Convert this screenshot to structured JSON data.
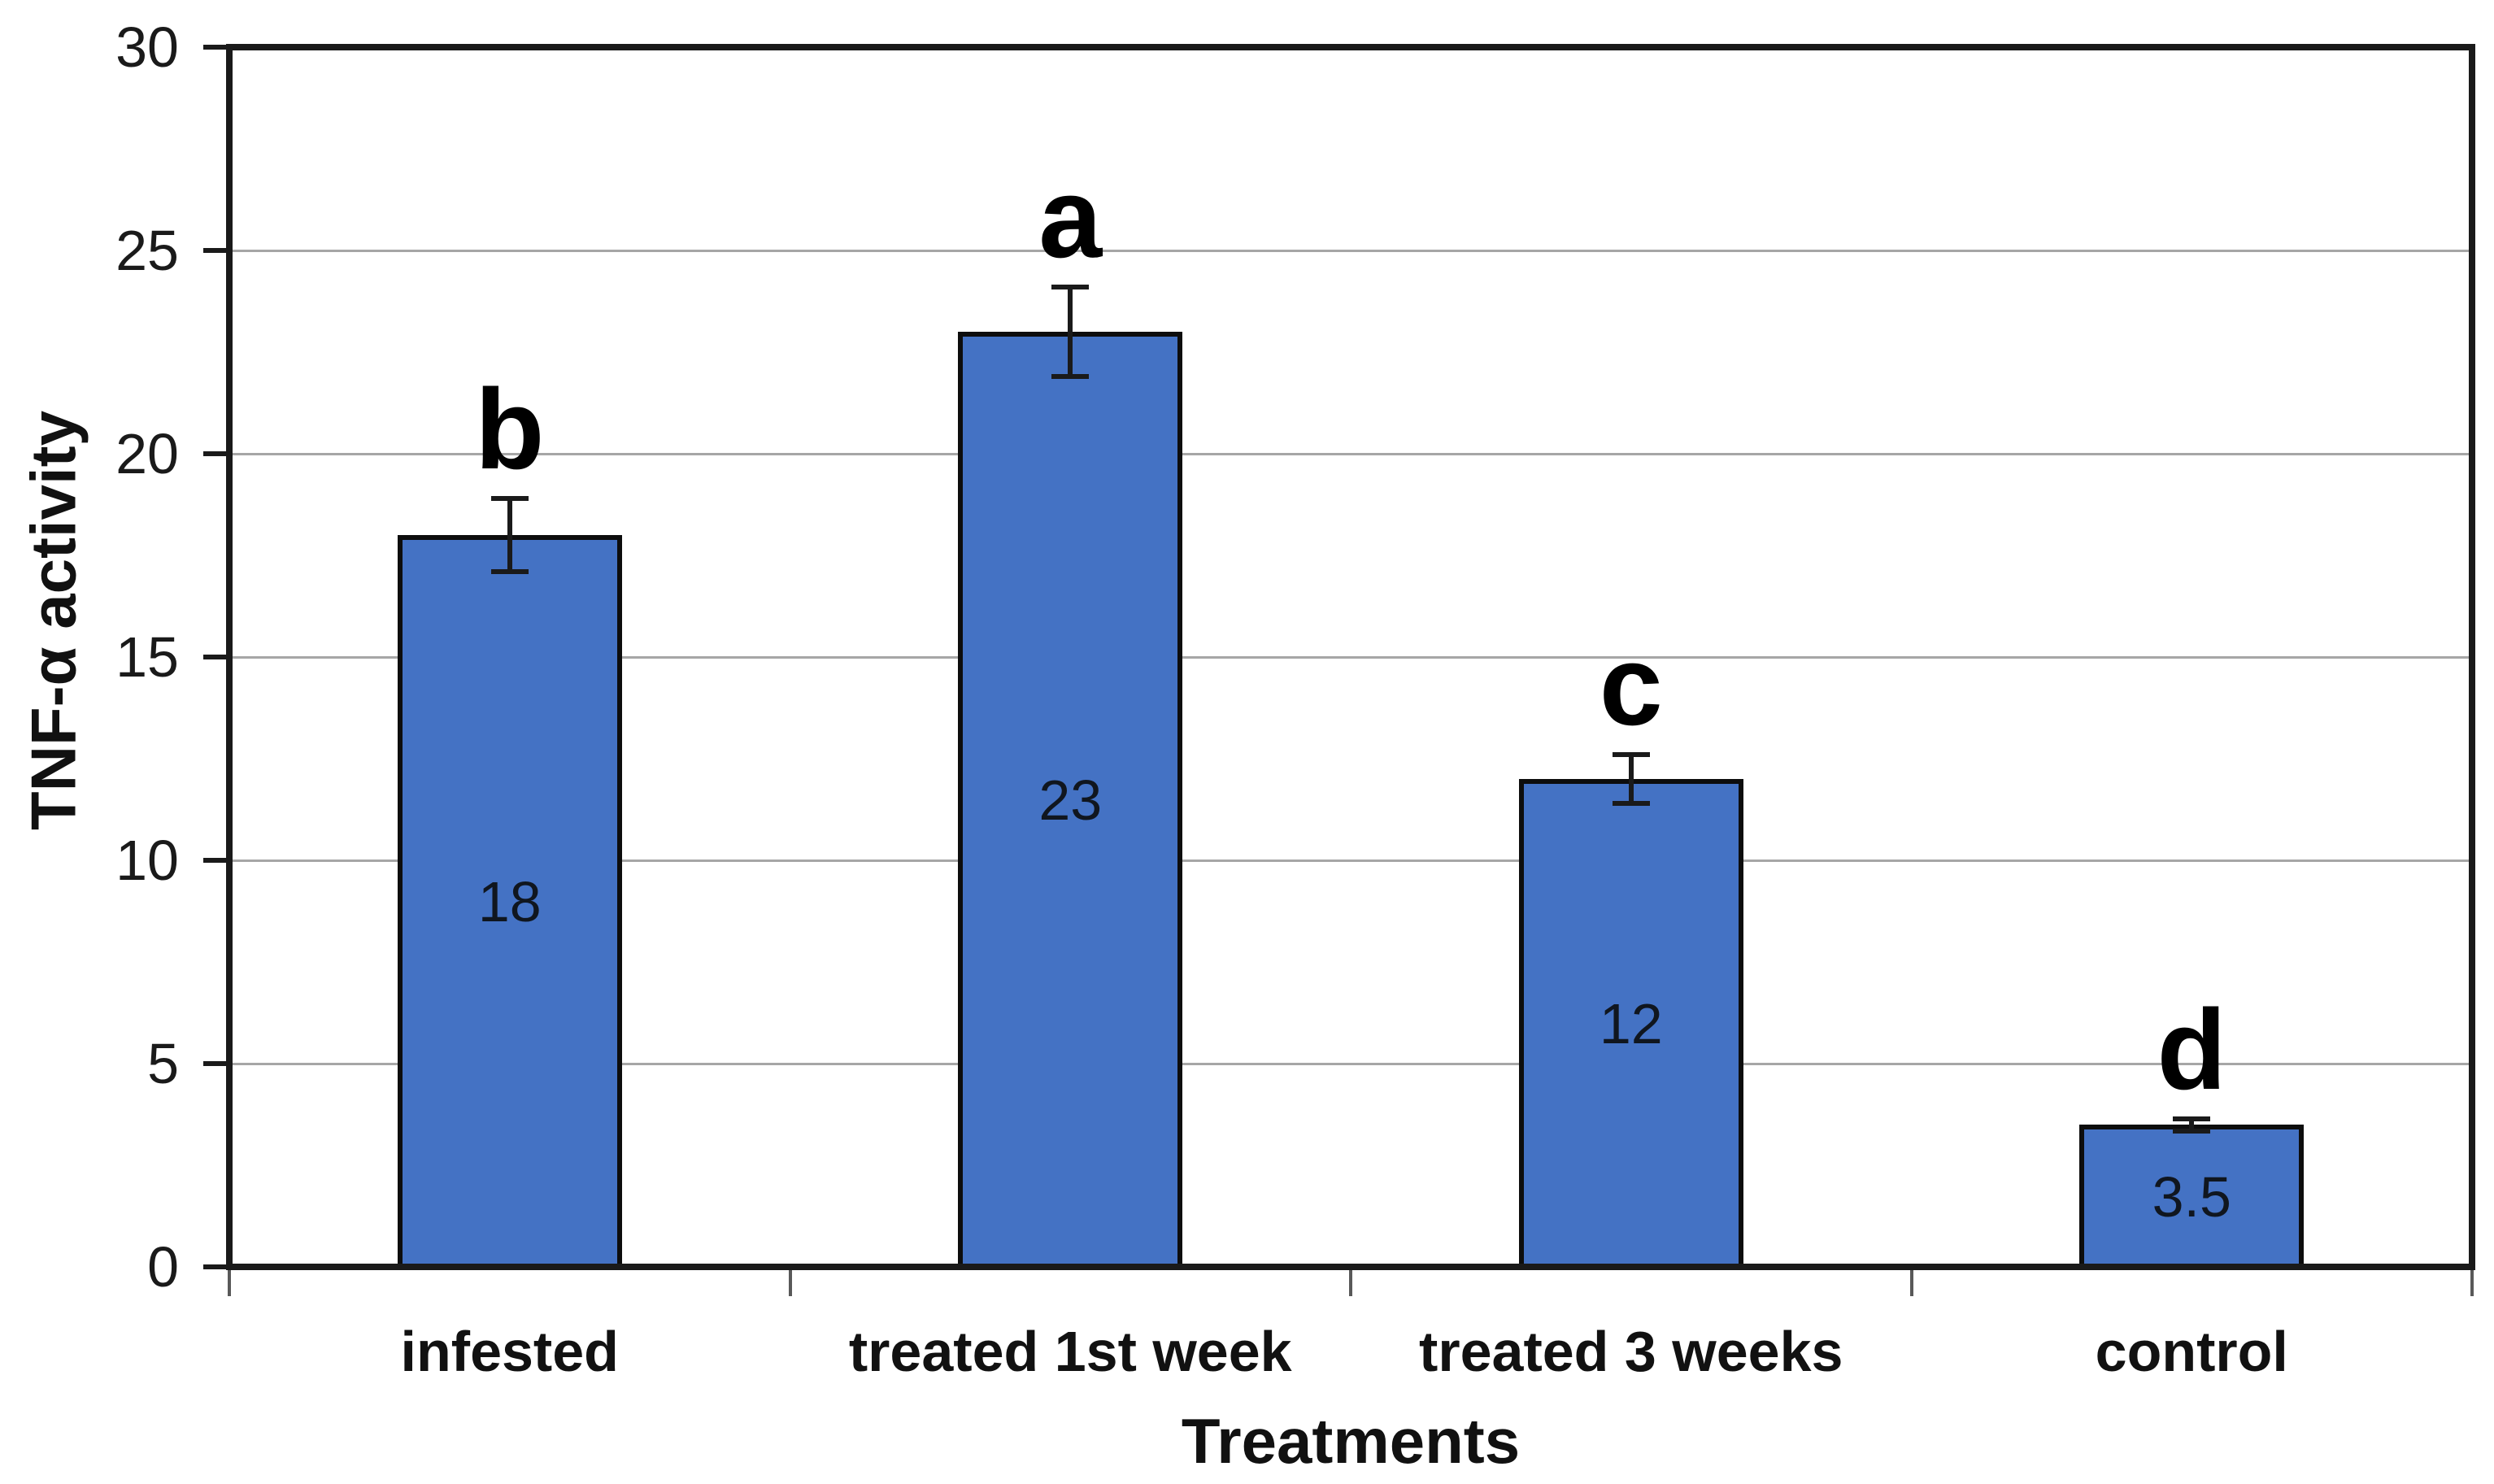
{
  "chart_data": {
    "type": "bar",
    "title": "",
    "xlabel": "Treatments",
    "ylabel": "TNF-α activity",
    "categories": [
      "infested",
      "treated 1st week",
      "treated 3 weeks",
      "control"
    ],
    "values": [
      18,
      23,
      12,
      3.5
    ],
    "value_labels": [
      "18",
      "23",
      "12",
      "3.5"
    ],
    "significance_letters": [
      "b",
      "a",
      "c",
      "d"
    ],
    "error_bars": [
      0.9,
      1.1,
      0.6,
      0.15
    ],
    "ylim": [
      0,
      30
    ],
    "yticks": [
      0,
      5,
      10,
      15,
      20,
      25,
      30
    ],
    "gridlines_at": [
      5,
      10,
      15,
      20,
      25
    ],
    "grid": true,
    "legend": "none",
    "colors": {
      "bar_fill": "#4472C4",
      "bar_border": "#0d0d0d",
      "gridline": "#A6A6A6",
      "axis": "#1a1a1a",
      "text": "#1a1a1a",
      "x_tick": "#595959"
    }
  }
}
